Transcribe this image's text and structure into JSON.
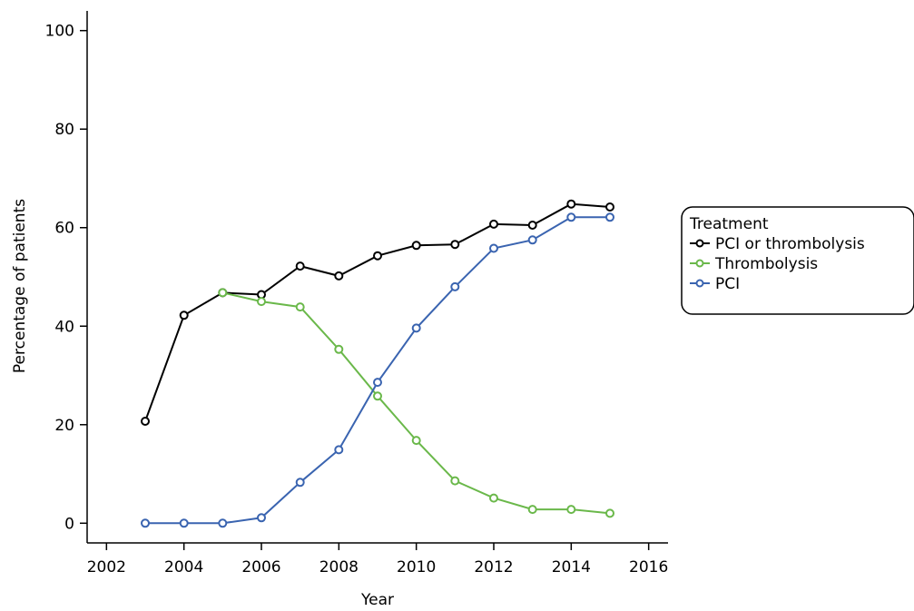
{
  "chart_data": {
    "type": "line",
    "title": "",
    "xlabel": "Year",
    "ylabel": "Percentage of patients",
    "xlim": [
      2001.5,
      2016.5
    ],
    "ylim": [
      -4,
      104
    ],
    "x_ticks": [
      2002,
      2004,
      2006,
      2008,
      2010,
      2012,
      2014,
      2016
    ],
    "y_ticks": [
      0,
      20,
      40,
      60,
      80,
      100
    ],
    "grid": false,
    "legend": {
      "title": "Treatment",
      "position": "right"
    },
    "x": [
      2003,
      2004,
      2005,
      2006,
      2007,
      2008,
      2009,
      2010,
      2011,
      2012,
      2013,
      2014,
      2015
    ],
    "series": [
      {
        "name": "PCI or thrombolysis",
        "color": "#000000",
        "values": [
          20.7,
          42.2,
          46.8,
          46.4,
          52.2,
          50.2,
          54.3,
          56.4,
          56.6,
          60.7,
          60.5,
          64.8,
          64.2
        ]
      },
      {
        "name": "Thrombolysis",
        "color": "#6ab84a",
        "values": [
          null,
          null,
          46.8,
          45.0,
          43.9,
          35.3,
          25.8,
          16.8,
          8.6,
          5.1,
          2.8,
          2.8,
          2.0
        ]
      },
      {
        "name": "PCI",
        "color": "#3a64b0",
        "values": [
          0.0,
          0.0,
          0.0,
          1.1,
          8.3,
          14.9,
          28.6,
          39.6,
          48.0,
          55.8,
          57.5,
          62.1,
          62.1
        ]
      }
    ]
  }
}
